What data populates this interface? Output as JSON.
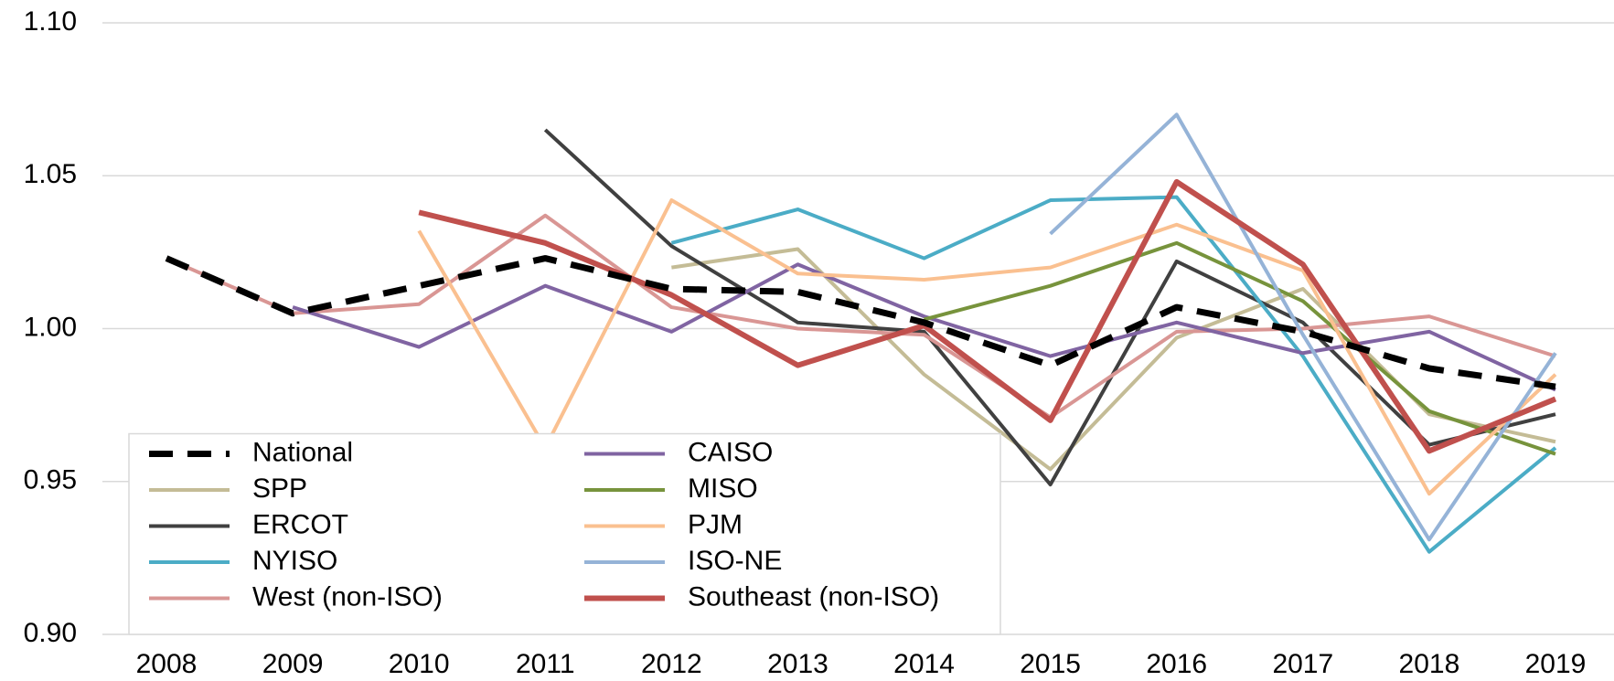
{
  "chart_data": {
    "type": "line",
    "categories": [
      "2008",
      "2009",
      "2010",
      "2011",
      "2012",
      "2013",
      "2014",
      "2015",
      "2016",
      "2017",
      "2018",
      "2019"
    ],
    "ylim": [
      0.9,
      1.1
    ],
    "yticks": [
      {
        "value": 0.9,
        "label": "0.90"
      },
      {
        "value": 0.95,
        "label": "0.95"
      },
      {
        "value": 1.0,
        "label": "1.00"
      },
      {
        "value": 1.05,
        "label": "1.05"
      },
      {
        "value": 1.1,
        "label": "1.10"
      }
    ],
    "grid": true,
    "legend": "lower left",
    "series": [
      {
        "name": "National",
        "color": "#000000",
        "dashed": true,
        "linewidth": 7,
        "values": [
          1.023,
          1.005,
          1.014,
          1.023,
          1.013,
          1.012,
          1.002,
          0.988,
          1.007,
          0.999,
          0.987,
          0.981
        ]
      },
      {
        "name": "SPP",
        "color": "#c4bc96",
        "linewidth": 4,
        "values": [
          null,
          null,
          null,
          null,
          1.02,
          1.026,
          0.985,
          0.954,
          0.997,
          1.013,
          0.972,
          0.963
        ]
      },
      {
        "name": "ERCOT",
        "color": "#404040",
        "linewidth": 4,
        "values": [
          null,
          null,
          null,
          1.065,
          1.027,
          1.002,
          0.999,
          0.949,
          1.022,
          1.002,
          0.962,
          0.972
        ]
      },
      {
        "name": "NYISO",
        "color": "#4bacc6",
        "linewidth": 4,
        "values": [
          null,
          null,
          null,
          null,
          1.028,
          1.039,
          1.023,
          1.042,
          1.043,
          0.991,
          0.927,
          0.961
        ]
      },
      {
        "name": "West (non-ISO)",
        "color": "#d99694",
        "linewidth": 4,
        "values": [
          1.023,
          1.005,
          1.008,
          1.037,
          1.007,
          1.0,
          0.998,
          0.971,
          0.999,
          1.0,
          1.004,
          0.991
        ]
      },
      {
        "name": "CAISO",
        "color": "#8064a2",
        "linewidth": 4,
        "values": [
          null,
          1.007,
          0.994,
          1.014,
          0.999,
          1.021,
          1.004,
          0.991,
          1.002,
          0.992,
          0.999,
          0.98
        ]
      },
      {
        "name": "MISO",
        "color": "#77933c",
        "linewidth": 4,
        "values": [
          null,
          null,
          null,
          null,
          null,
          null,
          1.003,
          1.014,
          1.028,
          1.009,
          0.973,
          0.959
        ]
      },
      {
        "name": "PJM",
        "color": "#fac090",
        "linewidth": 4,
        "values": [
          null,
          null,
          1.032,
          0.961,
          1.042,
          1.018,
          1.016,
          1.02,
          1.034,
          1.019,
          0.946,
          0.985
        ]
      },
      {
        "name": "ISO-NE",
        "color": "#95b3d7",
        "linewidth": 4,
        "values": [
          null,
          null,
          null,
          null,
          null,
          null,
          null,
          1.031,
          1.07,
          0.998,
          0.931,
          0.992
        ]
      },
      {
        "name": "Southeast (non-ISO)",
        "color": "#c0504d",
        "linewidth": 6,
        "values": [
          null,
          null,
          1.038,
          1.028,
          1.011,
          0.988,
          1.001,
          0.97,
          1.048,
          1.021,
          0.96,
          0.977
        ]
      }
    ]
  }
}
